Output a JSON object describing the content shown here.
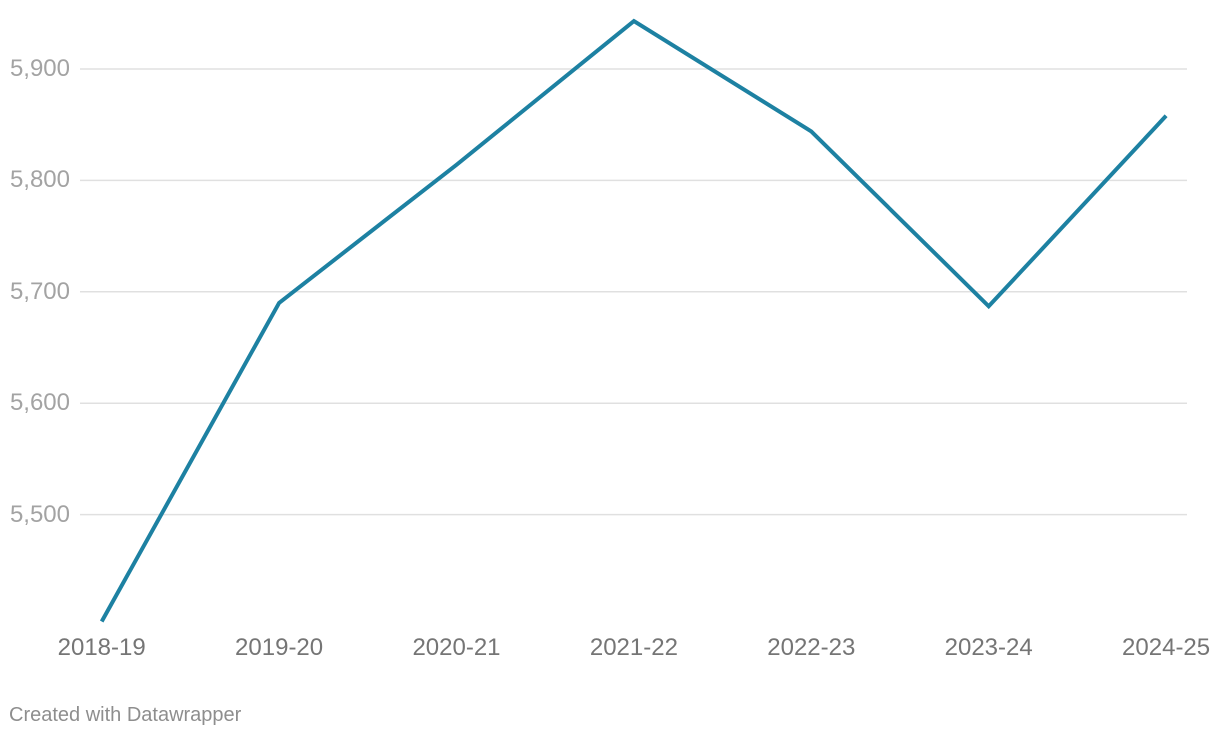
{
  "chart_data": {
    "type": "line",
    "categories": [
      "2018-19",
      "2019-20",
      "2020-21",
      "2021-22",
      "2022-23",
      "2023-24",
      "2024-25"
    ],
    "values": [
      5404,
      5690,
      5814,
      5943,
      5844,
      5687,
      5858
    ],
    "title": "",
    "xlabel": "",
    "ylabel": "",
    "y_ticks": [
      5500,
      5600,
      5700,
      5800,
      5900
    ],
    "y_tick_labels": [
      "5,500",
      "5,600",
      "5,700",
      "5,800",
      "5,900"
    ],
    "ylim": [
      5395,
      5962
    ],
    "grid": "horizontal-only",
    "legend": "none",
    "line_color": "#1d81a2",
    "grid_color": "#e0e0e0",
    "y_label_color": "#a3a3a3",
    "x_label_color": "#757575"
  },
  "attribution": {
    "text": "Created with Datawrapper",
    "color": "#8e8e8e"
  }
}
